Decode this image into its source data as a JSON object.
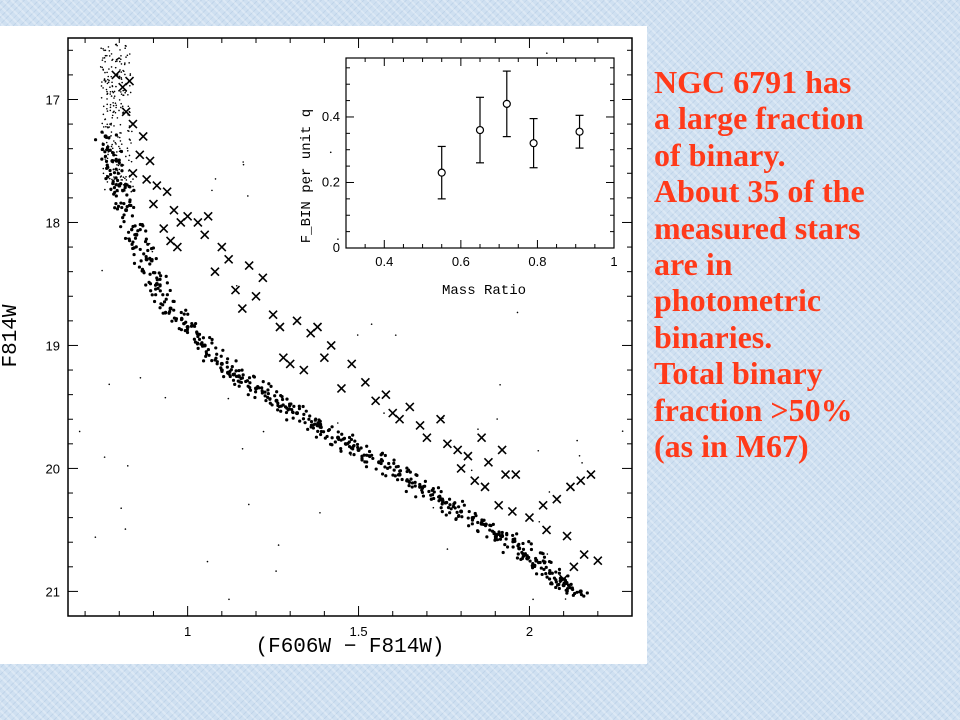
{
  "annotation": {
    "lines": [
      "NGC 6791 has",
      "a large fraction",
      "of binary.",
      "About 35 of the",
      "measured stars",
      "are in",
      "photometric",
      "binaries.",
      "Total binary",
      "fraction >50%",
      "(as in M67)"
    ],
    "color": "#ff3a1a"
  },
  "chart_data": [
    {
      "type": "scatter",
      "title": "",
      "xlabel": "(F606W − F814W)",
      "ylabel": "F814W",
      "xlim": [
        0.65,
        2.3
      ],
      "ylim": [
        21.2,
        16.5
      ],
      "y_inverted": true,
      "x_ticks": [
        "1",
        "1.5",
        "2"
      ],
      "y_ticks": [
        "17",
        "18",
        "19",
        "20",
        "21"
      ],
      "series": [
        {
          "marker": "x",
          "points": [
            [
              0.79,
              16.8
            ],
            [
              0.81,
              16.9
            ],
            [
              0.83,
              16.85
            ],
            [
              0.82,
              17.1
            ],
            [
              0.84,
              17.2
            ],
            [
              0.87,
              17.3
            ],
            [
              0.86,
              17.45
            ],
            [
              0.89,
              17.5
            ],
            [
              0.84,
              17.6
            ],
            [
              0.88,
              17.65
            ],
            [
              0.91,
              17.7
            ],
            [
              0.94,
              17.75
            ],
            [
              0.9,
              17.85
            ],
            [
              0.96,
              17.9
            ],
            [
              0.98,
              18.0
            ],
            [
              0.93,
              18.05
            ],
            [
              1.0,
              17.95
            ],
            [
              1.03,
              18.0
            ],
            [
              1.06,
              17.95
            ],
            [
              0.95,
              18.15
            ],
            [
              0.97,
              18.2
            ],
            [
              1.05,
              18.1
            ],
            [
              1.1,
              18.2
            ],
            [
              1.12,
              18.3
            ],
            [
              1.08,
              18.4
            ],
            [
              1.18,
              18.35
            ],
            [
              1.22,
              18.45
            ],
            [
              1.14,
              18.55
            ],
            [
              1.2,
              18.6
            ],
            [
              1.16,
              18.7
            ],
            [
              1.25,
              18.75
            ],
            [
              1.27,
              18.85
            ],
            [
              1.32,
              18.8
            ],
            [
              1.36,
              18.9
            ],
            [
              1.38,
              18.85
            ],
            [
              1.42,
              19.0
            ],
            [
              1.28,
              19.1
            ],
            [
              1.3,
              19.15
            ],
            [
              1.34,
              19.2
            ],
            [
              1.4,
              19.1
            ],
            [
              1.48,
              19.15
            ],
            [
              1.52,
              19.3
            ],
            [
              1.45,
              19.35
            ],
            [
              1.55,
              19.45
            ],
            [
              1.58,
              19.4
            ],
            [
              1.6,
              19.55
            ],
            [
              1.62,
              19.6
            ],
            [
              1.65,
              19.5
            ],
            [
              1.68,
              19.65
            ],
            [
              1.7,
              19.75
            ],
            [
              1.74,
              19.6
            ],
            [
              1.76,
              19.8
            ],
            [
              1.79,
              19.85
            ],
            [
              1.82,
              19.9
            ],
            [
              1.86,
              19.75
            ],
            [
              1.88,
              19.95
            ],
            [
              1.92,
              19.85
            ],
            [
              1.96,
              20.05
            ],
            [
              1.8,
              20.0
            ],
            [
              1.84,
              20.1
            ],
            [
              1.87,
              20.15
            ],
            [
              1.93,
              20.05
            ],
            [
              1.91,
              20.3
            ],
            [
              1.95,
              20.35
            ],
            [
              2.0,
              20.4
            ],
            [
              2.04,
              20.3
            ],
            [
              2.08,
              20.25
            ],
            [
              2.12,
              20.15
            ],
            [
              2.15,
              20.1
            ],
            [
              2.18,
              20.05
            ],
            [
              2.05,
              20.5
            ],
            [
              2.11,
              20.55
            ],
            [
              2.16,
              20.7
            ],
            [
              2.13,
              20.8
            ],
            [
              2.2,
              20.75
            ],
            [
              2.1,
              20.9
            ]
          ]
        },
        {
          "marker": "dot",
          "points": [
            [
              0.76,
              17.3
            ],
            [
              0.78,
              17.5
            ],
            [
              0.8,
              17.7
            ],
            [
              0.82,
              17.9
            ],
            [
              0.85,
              18.1
            ],
            [
              0.88,
              18.3
            ],
            [
              0.91,
              18.5
            ],
            [
              0.95,
              18.7
            ],
            [
              1.0,
              18.85
            ],
            [
              1.05,
              19.0
            ],
            [
              1.1,
              19.15
            ],
            [
              1.15,
              19.25
            ],
            [
              1.2,
              19.35
            ],
            [
              1.26,
              19.45
            ],
            [
              1.32,
              19.55
            ],
            [
              1.38,
              19.65
            ],
            [
              1.44,
              19.75
            ],
            [
              1.5,
              19.85
            ],
            [
              1.56,
              19.95
            ],
            [
              1.62,
              20.05
            ],
            [
              1.68,
              20.15
            ],
            [
              1.74,
              20.25
            ],
            [
              1.8,
              20.35
            ],
            [
              1.86,
              20.45
            ],
            [
              1.92,
              20.55
            ],
            [
              1.97,
              20.65
            ],
            [
              2.02,
              20.75
            ],
            [
              2.06,
              20.85
            ],
            [
              2.1,
              20.95
            ],
            [
              2.15,
              21.0
            ]
          ]
        }
      ]
    },
    {
      "type": "scatter",
      "title": "",
      "xlabel": "Mass Ratio",
      "ylabel": "F_BIN per unit q",
      "xlim": [
        0.3,
        1.0
      ],
      "ylim": [
        0,
        0.58
      ],
      "x_ticks": [
        "0.4",
        "0.6",
        "0.8",
        "1"
      ],
      "y_ticks": [
        "0",
        "0.2",
        "0.4"
      ],
      "points": [
        {
          "x": 0.55,
          "y": 0.23,
          "err": 0.08
        },
        {
          "x": 0.65,
          "y": 0.36,
          "err": 0.1
        },
        {
          "x": 0.72,
          "y": 0.44,
          "err": 0.1
        },
        {
          "x": 0.79,
          "y": 0.32,
          "err": 0.075
        },
        {
          "x": 0.91,
          "y": 0.355,
          "err": 0.05
        }
      ]
    }
  ]
}
